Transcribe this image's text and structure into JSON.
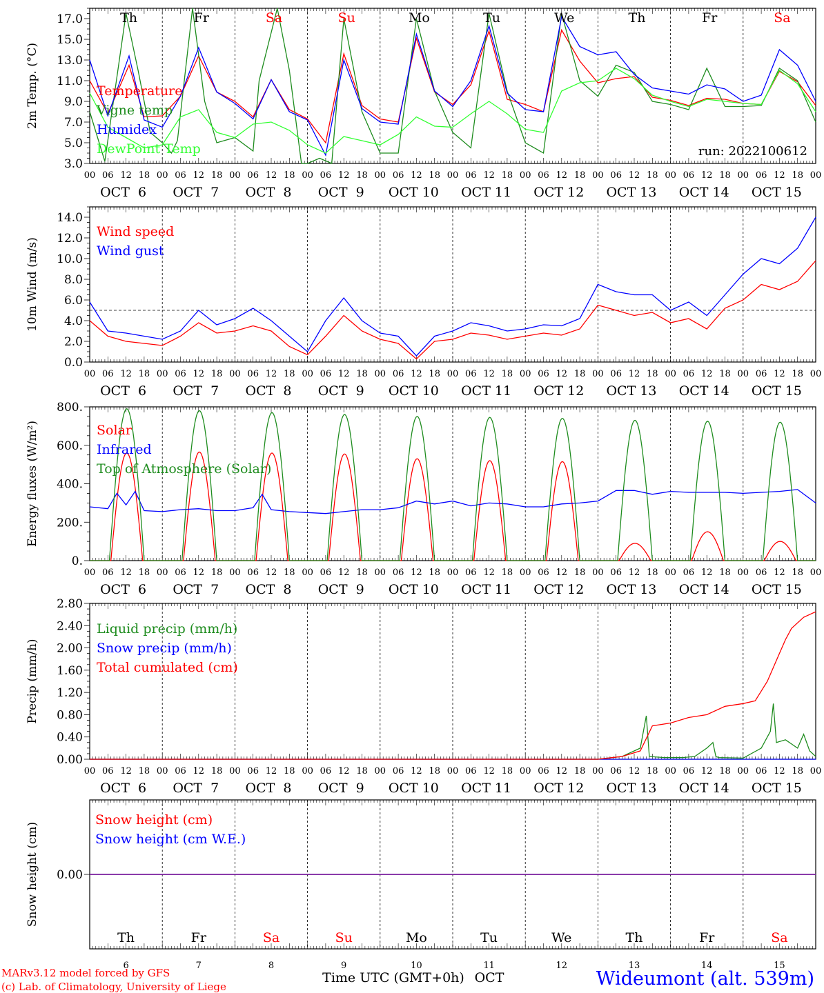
{
  "colors": {
    "red": "#ff0000",
    "green_dark": "#1e8c1e",
    "green_light": "#32ff32",
    "blue": "#0000ff",
    "purple": "#7a1f9e",
    "black": "#000000"
  },
  "days": {
    "weekdays": [
      "Th",
      "Fr",
      "Sa",
      "Su",
      "Mo",
      "Tu",
      "We",
      "Th",
      "Fr",
      "Sa"
    ],
    "weekend": [
      false,
      false,
      true,
      true,
      false,
      false,
      false,
      false,
      false,
      true
    ],
    "dates": [
      "OCT  6",
      "OCT  7",
      "OCT  8",
      "OCT  9",
      "OCT 10",
      "OCT 11",
      "OCT 12",
      "OCT 13",
      "OCT 14",
      "OCT 15"
    ],
    "day_numbers": [
      "6",
      "7",
      "8",
      "9",
      "10",
      "11",
      "12",
      "13",
      "14",
      "15"
    ],
    "hour_labels": [
      "00",
      "06",
      "12",
      "18"
    ],
    "final_hour_label": "00"
  },
  "footer": {
    "model": "MARv3.12 model forced by GFS",
    "lab": "(c) Lab. of Climatology, University of Liege",
    "axis_title": "Time UTC (GMT+0h)",
    "month": "OCT",
    "station": "Wideumont (alt. 539m)"
  },
  "chart_data": [
    {
      "type": "line",
      "ylabel": "2m Temp. (°C)",
      "ylim": [
        3,
        18
      ],
      "yticks": [
        "3.0",
        "5.0",
        "7.0",
        "9.0",
        "11.0",
        "13.0",
        "15.0",
        "17.0"
      ],
      "x_unit": "hours since 2022-10-06 00 UTC",
      "run": "run: 2022100612",
      "series": [
        {
          "name": "Temperature",
          "color": "#ff0000",
          "x": [
            0,
            6,
            13,
            18,
            24,
            30,
            36,
            42,
            48,
            54,
            60,
            66,
            72,
            78,
            84,
            90,
            96,
            102,
            108,
            114,
            120,
            126,
            132,
            138,
            144,
            150,
            156,
            162,
            168,
            174,
            180,
            186,
            192,
            198,
            204,
            210,
            216,
            222,
            228,
            234,
            240
          ],
          "values": [
            11.0,
            7.8,
            12.5,
            7.5,
            7.6,
            9.5,
            13.4,
            9.9,
            9.0,
            7.5,
            11.1,
            8.2,
            7.3,
            5.0,
            13.6,
            8.6,
            7.3,
            7.0,
            15.1,
            9.9,
            8.7,
            10.6,
            15.8,
            9.2,
            8.7,
            8.0,
            15.9,
            12.9,
            10.8,
            11.2,
            11.4,
            9.4,
            9.1,
            8.6,
            9.3,
            9.2,
            8.8,
            8.7,
            11.9,
            10.9,
            8.6
          ]
        },
        {
          "name": "Vigne temp",
          "color": "#1e8c1e",
          "x": [
            0,
            5,
            12,
            16,
            20,
            24,
            27,
            29,
            34,
            38,
            42,
            48,
            54,
            56,
            62,
            66,
            70,
            72,
            76,
            80,
            84,
            90,
            96,
            102,
            108,
            114,
            120,
            126,
            132,
            138,
            144,
            150,
            156,
            162,
            168,
            174,
            180,
            186,
            192,
            198,
            204,
            210,
            216,
            222,
            228,
            234,
            240
          ],
          "values": [
            8.0,
            3.2,
            17.5,
            12.0,
            6.0,
            5.0,
            4.0,
            5.2,
            18.0,
            9.0,
            5.0,
            5.5,
            4.2,
            11.0,
            18.0,
            12.0,
            3.0,
            2.9,
            3.5,
            3.0,
            17.0,
            8.0,
            4.0,
            4.0,
            17.0,
            10.0,
            6.0,
            4.5,
            17.5,
            10.0,
            5.0,
            4.0,
            17.5,
            11.0,
            9.5,
            12.5,
            11.8,
            9.0,
            8.7,
            8.2,
            12.2,
            8.5,
            8.5,
            8.6,
            12.2,
            11.0,
            7.0
          ]
        },
        {
          "name": "Humidex",
          "color": "#0000ff",
          "x": [
            0,
            6,
            13,
            18,
            24,
            30,
            36,
            42,
            48,
            54,
            60,
            66,
            72,
            78,
            84,
            90,
            96,
            102,
            108,
            114,
            120,
            126,
            132,
            138,
            144,
            150,
            156,
            162,
            168,
            174,
            180,
            186,
            192,
            198,
            204,
            210,
            216,
            222,
            228,
            234,
            240
          ],
          "values": [
            13.0,
            7.6,
            13.4,
            7.2,
            6.5,
            9.5,
            14.2,
            9.9,
            8.8,
            7.3,
            11.1,
            8.0,
            7.2,
            3.8,
            13.0,
            8.3,
            7.0,
            6.8,
            15.5,
            10.0,
            8.5,
            11.0,
            16.3,
            9.8,
            8.2,
            8.0,
            17.2,
            14.3,
            13.5,
            13.8,
            11.6,
            10.3,
            10.0,
            9.7,
            10.6,
            10.2,
            9.0,
            9.6,
            14.0,
            12.5,
            9.0
          ]
        },
        {
          "name": "DewPoint Temp",
          "color": "#32ff32",
          "x": [
            0,
            6,
            12,
            18,
            24,
            30,
            36,
            42,
            48,
            54,
            60,
            66,
            72,
            78,
            84,
            90,
            96,
            102,
            108,
            114,
            120,
            126,
            132,
            138,
            144,
            150,
            156,
            162,
            168,
            174,
            180,
            186,
            192,
            198,
            204,
            210,
            216,
            222,
            228,
            234,
            240
          ],
          "values": [
            9.8,
            6.5,
            5.5,
            4.5,
            4.8,
            7.5,
            8.2,
            6.0,
            5.5,
            6.8,
            7.0,
            6.2,
            4.8,
            4.0,
            5.6,
            5.2,
            4.8,
            5.8,
            7.5,
            6.6,
            6.5,
            7.8,
            9.0,
            7.8,
            6.3,
            6.0,
            10.0,
            10.8,
            11.0,
            12.2,
            11.2,
            9.6,
            9.0,
            8.5,
            9.2,
            9.0,
            8.8,
            8.7,
            12.0,
            10.7,
            8.0
          ]
        }
      ]
    },
    {
      "type": "line",
      "ylabel": "10m Wind (m/s)",
      "ylim": [
        0,
        15
      ],
      "yticks": [
        "0.0",
        "2.0",
        "4.0",
        "6.0",
        "8.0",
        "10.0",
        "12.0",
        "14.0"
      ],
      "reference_line": 5.0,
      "series": [
        {
          "name": "Wind speed",
          "color": "#ff0000",
          "x": [
            0,
            6,
            12,
            18,
            24,
            30,
            36,
            42,
            48,
            54,
            60,
            66,
            72,
            78,
            84,
            90,
            96,
            102,
            108,
            114,
            120,
            126,
            132,
            138,
            144,
            150,
            156,
            162,
            168,
            174,
            180,
            186,
            192,
            198,
            204,
            210,
            216,
            222,
            228,
            234,
            240
          ],
          "values": [
            4.0,
            2.5,
            2.0,
            1.8,
            1.6,
            2.5,
            3.8,
            2.8,
            3.0,
            3.5,
            3.0,
            1.5,
            0.7,
            2.5,
            4.5,
            3.0,
            2.2,
            1.8,
            0.3,
            2.0,
            2.2,
            2.8,
            2.6,
            2.2,
            2.5,
            2.8,
            2.6,
            3.2,
            5.5,
            5.0,
            4.5,
            4.8,
            3.8,
            4.2,
            3.2,
            5.2,
            6.0,
            7.5,
            7.0,
            7.8,
            9.8
          ]
        },
        {
          "name": "Wind gust",
          "color": "#0000ff",
          "x": [
            0,
            6,
            12,
            18,
            24,
            30,
            36,
            42,
            48,
            54,
            60,
            66,
            72,
            78,
            84,
            90,
            96,
            102,
            108,
            114,
            120,
            126,
            132,
            138,
            144,
            150,
            156,
            162,
            168,
            174,
            180,
            186,
            192,
            198,
            204,
            210,
            216,
            222,
            228,
            234,
            240
          ],
          "values": [
            5.8,
            3.0,
            2.8,
            2.5,
            2.2,
            3.0,
            5.0,
            3.6,
            4.2,
            5.2,
            4.0,
            2.5,
            1.0,
            4.0,
            6.2,
            4.0,
            2.8,
            2.5,
            0.6,
            2.5,
            3.0,
            3.8,
            3.5,
            3.0,
            3.2,
            3.6,
            3.5,
            4.2,
            7.5,
            6.8,
            6.5,
            6.5,
            5.0,
            5.8,
            4.5,
            6.5,
            8.5,
            10.0,
            9.5,
            11.0,
            14.0
          ]
        }
      ]
    },
    {
      "type": "line",
      "ylabel": "Energy fluxes (W/m²)",
      "ylim": [
        0,
        800
      ],
      "yticks": [
        "0.",
        "200.",
        "400.",
        "600.",
        "800."
      ],
      "series": [
        {
          "name": "Solar",
          "color": "#ff0000",
          "peaks": [
            560,
            565,
            560,
            555,
            530,
            520,
            515,
            90,
            150,
            100
          ],
          "sunrise_hour": 7,
          "sunset_hour": 17.5
        },
        {
          "name": "Infrared",
          "color": "#0000ff",
          "x": [
            0,
            6,
            9,
            12,
            15,
            18,
            24,
            30,
            36,
            42,
            48,
            54,
            57,
            60,
            66,
            72,
            78,
            84,
            90,
            96,
            102,
            108,
            114,
            120,
            126,
            132,
            138,
            144,
            150,
            156,
            162,
            168,
            174,
            180,
            186,
            192,
            198,
            204,
            210,
            216,
            222,
            228,
            234,
            240
          ],
          "values": [
            280,
            270,
            350,
            290,
            360,
            260,
            255,
            265,
            270,
            260,
            260,
            275,
            345,
            265,
            255,
            250,
            245,
            255,
            265,
            265,
            275,
            310,
            295,
            310,
            285,
            300,
            295,
            280,
            280,
            295,
            300,
            310,
            365,
            365,
            345,
            360,
            355,
            355,
            355,
            350,
            355,
            360,
            370,
            300
          ]
        },
        {
          "name": "Top of Atmosphere (Solar)",
          "color": "#1e8c1e",
          "peaks": [
            790,
            780,
            770,
            760,
            750,
            745,
            740,
            730,
            725,
            720
          ],
          "sunrise_hour": 6.5,
          "sunset_hour": 18
        }
      ]
    },
    {
      "type": "line",
      "ylabel": "Precip (mm/h)",
      "ylim": [
        0,
        2.8
      ],
      "yticks": [
        "0.00",
        "0.40",
        "0.80",
        "1.20",
        "1.60",
        "2.00",
        "2.40",
        "2.80"
      ],
      "series": [
        {
          "name": "Liquid precip (mm/h)",
          "color": "#1e8c1e",
          "x": [
            0,
            168,
            176,
            182,
            184,
            185,
            190,
            196,
            200,
            204,
            206,
            207,
            208,
            216,
            222,
            225,
            226,
            227,
            230,
            234,
            236,
            238,
            240
          ],
          "values": [
            0,
            0,
            0.05,
            0.2,
            0.78,
            0.05,
            0.03,
            0.03,
            0.05,
            0.2,
            0.3,
            0.05,
            0.03,
            0.02,
            0.2,
            0.5,
            1.0,
            0.3,
            0.35,
            0.2,
            0.45,
            0.15,
            0.05
          ]
        },
        {
          "name": "Snow precip (mm/h)",
          "color": "#0000ff",
          "x": [
            0,
            240
          ],
          "values": [
            0,
            0
          ]
        },
        {
          "name": "Total cumulated (cm)",
          "color": "#ff0000",
          "x": [
            0,
            168,
            176,
            182,
            186,
            192,
            198,
            204,
            210,
            216,
            220,
            224,
            228,
            230,
            232,
            236,
            240
          ],
          "values": [
            0,
            0,
            0.05,
            0.15,
            0.6,
            0.65,
            0.75,
            0.8,
            0.95,
            1.0,
            1.05,
            1.4,
            1.9,
            2.15,
            2.35,
            2.55,
            2.65
          ]
        }
      ]
    },
    {
      "type": "line",
      "ylabel": "Snow height (cm)",
      "yticks": [
        "0.00"
      ],
      "series": [
        {
          "name": "Snow height (cm)",
          "color": "#ff0000",
          "x": [
            0,
            240
          ],
          "values": [
            0,
            0
          ]
        },
        {
          "name": "Snow height (cm W.E.)",
          "color": "#0000ff",
          "x": [
            0,
            240
          ],
          "values": [
            0,
            0
          ]
        }
      ]
    }
  ]
}
